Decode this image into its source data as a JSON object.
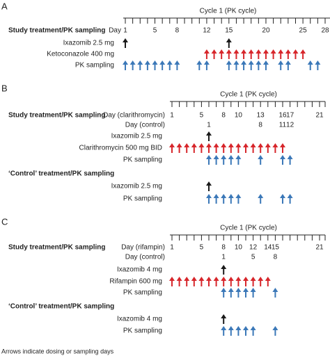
{
  "panels": [
    {
      "letter": "A",
      "cycle_title": "Cycle 1 (PK cycle)",
      "xlim": [
        1,
        28
      ],
      "day_rows": [
        {
          "label": "Day",
          "ticks": [
            1,
            5,
            8,
            12,
            15,
            20,
            25,
            28
          ]
        }
      ],
      "sections": [
        {
          "heading": "Study treatment/PK sampling",
          "rows": [
            {
              "label": "Ixazomib 2.5 mg",
              "color": "#1a1a1a",
              "days": [
                1,
                15
              ]
            },
            {
              "label": "Ketoconazole 400 mg",
              "color": "#d7262b",
              "days": [
                12,
                13,
                14,
                15,
                16,
                17,
                18,
                19,
                20,
                21,
                22,
                23,
                24,
                25
              ]
            },
            {
              "label": "PK sampling",
              "color": "#3b78b8",
              "days": [
                1,
                2,
                3,
                4,
                5,
                6,
                7,
                8,
                11,
                12,
                15,
                16,
                17,
                18,
                19,
                20,
                22,
                23,
                26,
                27
              ]
            }
          ]
        }
      ]
    },
    {
      "letter": "B",
      "cycle_title": "Cycle 1 (PK cycle)",
      "xlim": [
        1,
        21
      ],
      "day_rows": [
        {
          "label": "Day (clarithromycin)",
          "ticks": [
            1,
            5,
            8,
            10,
            13,
            16,
            17,
            21
          ]
        },
        {
          "label": "Day (control)",
          "ticks": [
            {
              "value": 6,
              "label": "1"
            },
            {
              "value": 13,
              "label": "8"
            },
            {
              "value": 16,
              "label": "11"
            },
            {
              "value": 17,
              "label": "12"
            }
          ]
        }
      ],
      "sections": [
        {
          "heading": "Study treatment/PK sampling",
          "rows": [
            {
              "label": "Ixazomib 2.5 mg",
              "color": "#1a1a1a",
              "days": [
                6
              ]
            },
            {
              "label": "Clarithromycin 500 mg BID",
              "color": "#d7262b",
              "days": [
                1,
                2,
                3,
                4,
                5,
                6,
                7,
                8,
                9,
                10,
                11,
                12,
                13,
                14,
                15,
                16
              ]
            },
            {
              "label": "PK sampling",
              "color": "#3b78b8",
              "days": [
                6,
                7,
                8,
                9,
                10,
                13,
                16,
                17
              ]
            }
          ]
        },
        {
          "heading": "‘Control’ treatment/PK sampling",
          "rows": [
            {
              "label": "Ixazomib 2.5 mg",
              "color": "#1a1a1a",
              "days": [
                6
              ]
            },
            {
              "label": "PK sampling",
              "color": "#3b78b8",
              "days": [
                6,
                7,
                8,
                9,
                10,
                13,
                16,
                17
              ]
            }
          ]
        }
      ]
    },
    {
      "letter": "C",
      "cycle_title": "Cycle 1 (PK cycle)",
      "xlim": [
        1,
        21
      ],
      "day_rows": [
        {
          "label": "Day (rifampin)",
          "ticks": [
            1,
            5,
            8,
            10,
            12,
            14,
            15,
            21
          ]
        },
        {
          "label": "Day (control)",
          "ticks": [
            {
              "value": 8,
              "label": "1"
            },
            {
              "value": 12,
              "label": "5"
            },
            {
              "value": 15,
              "label": "8"
            }
          ]
        }
      ],
      "sections": [
        {
          "heading": "Study treatment/PK sampling",
          "rows": [
            {
              "label": "Ixazomib 4 mg",
              "color": "#1a1a1a",
              "days": [
                8
              ]
            },
            {
              "label": "Rifampin 600 mg",
              "color": "#d7262b",
              "days": [
                1,
                2,
                3,
                4,
                5,
                6,
                7,
                8,
                9,
                10,
                11,
                12,
                13,
                14
              ]
            },
            {
              "label": "PK sampling",
              "color": "#3b78b8",
              "days": [
                8,
                9,
                10,
                11,
                12,
                15
              ]
            }
          ]
        },
        {
          "heading": "‘Control’ treatment/PK sampling",
          "rows": [
            {
              "label": "Ixazomib 4 mg",
              "color": "#1a1a1a",
              "days": [
                8
              ]
            },
            {
              "label": "PK sampling",
              "color": "#3b78b8",
              "days": [
                8,
                9,
                10,
                11,
                12,
                15
              ]
            }
          ]
        }
      ]
    }
  ],
  "footnote": "Arrows indicate dosing or sampling days"
}
